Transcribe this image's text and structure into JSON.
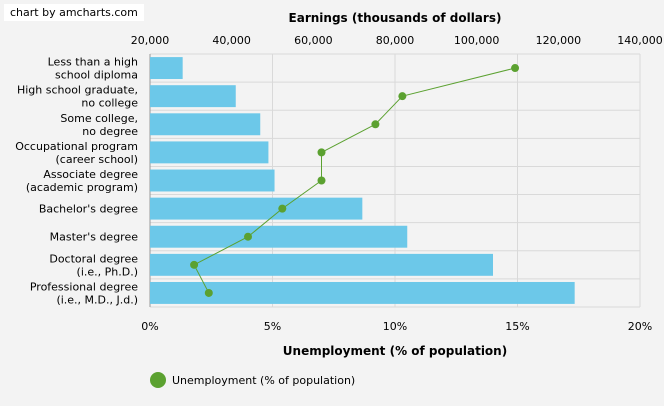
{
  "credit": "chart by amcharts.com",
  "colors": {
    "bar": "#6cc8e9",
    "line": "#5ba130",
    "grid": "#d9d9d9",
    "background": "#f3f3f3"
  },
  "legend": {
    "label": "Unemployment (% of population)",
    "icon": "circle-marker-icon"
  },
  "chart_data": {
    "type": "bar",
    "orientation": "horizontal",
    "categories": [
      [
        "Less than a high",
        "school diploma"
      ],
      [
        "High school graduate,",
        "no college"
      ],
      [
        "Some college,",
        "no degree"
      ],
      [
        "Occupational program",
        "(career school)"
      ],
      [
        "Associate degree",
        "(academic program)"
      ],
      [
        "Bachelor's degree"
      ],
      [
        "Master's degree"
      ],
      [
        "Doctoral degree",
        "(i.e., Ph.D.)"
      ],
      [
        "Professional degree",
        "(i.e., M.D., J.d.)"
      ]
    ],
    "series": [
      {
        "name": "Earnings (thousands of dollars)",
        "type": "bar",
        "axis": "top",
        "values": [
          28000,
          41000,
          47000,
          49000,
          50500,
          72000,
          83000,
          104000,
          124000
        ]
      },
      {
        "name": "Unemployment (% of population)",
        "type": "line",
        "axis": "bottom",
        "values": [
          14.9,
          10.3,
          9.2,
          7.0,
          7.0,
          5.4,
          4.0,
          1.8,
          2.4
        ]
      }
    ],
    "top_axis": {
      "title": "Earnings (thousands of dollars)",
      "range": [
        20000,
        140000
      ],
      "ticks": [
        "20,000",
        "40,000",
        "60,000",
        "80,000",
        "100,000",
        "120,000",
        "140,000"
      ]
    },
    "bottom_axis": {
      "title": "Unemployment (% of population)",
      "range": [
        0,
        20
      ],
      "ticks": [
        "0%",
        "5%",
        "10%",
        "15%",
        "20%"
      ]
    },
    "grid": true,
    "legend_position": "bottom-left"
  }
}
